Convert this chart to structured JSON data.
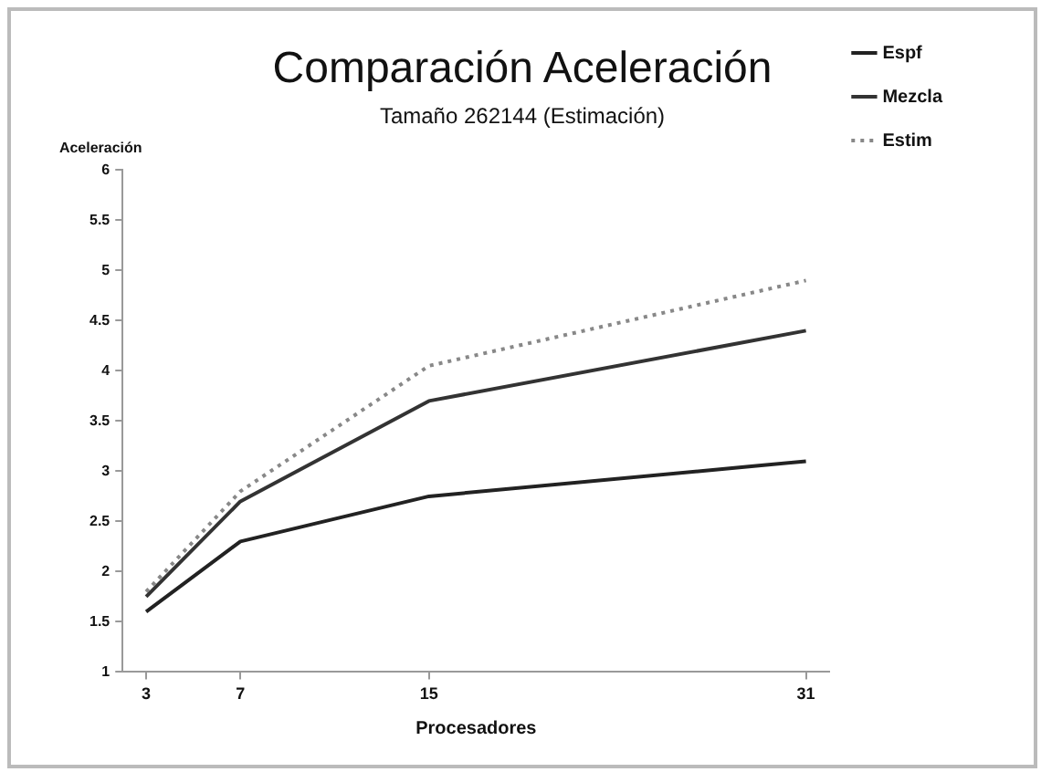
{
  "chart_data": {
    "type": "line",
    "title": "Comparación Aceleración",
    "subtitle": "Tamaño 262144 (Estimación)",
    "xlabel": "Procesadores",
    "ylabel": "Aceleración",
    "x": [
      3,
      7,
      15,
      31
    ],
    "xlim": [
      2,
      32
    ],
    "xticks": [
      3,
      7,
      15,
      31
    ],
    "ylim": [
      1,
      6
    ],
    "yticks": [
      1,
      1.5,
      2,
      2.5,
      3,
      3.5,
      4,
      4.5,
      5,
      5.5,
      6
    ],
    "series": [
      {
        "name": "Espf",
        "color": "#222222",
        "line_style": "solid",
        "values": [
          1.6,
          2.3,
          2.75,
          3.1
        ]
      },
      {
        "name": "Mezcla",
        "color": "#333333",
        "line_style": "solid",
        "values": [
          1.75,
          2.7,
          3.7,
          4.4
        ]
      },
      {
        "name": "Estim",
        "color": "#888888",
        "line_style": "dotted",
        "values": [
          1.8,
          2.8,
          4.05,
          4.9
        ]
      }
    ],
    "legend": "right",
    "grid": false,
    "marker": "none"
  }
}
